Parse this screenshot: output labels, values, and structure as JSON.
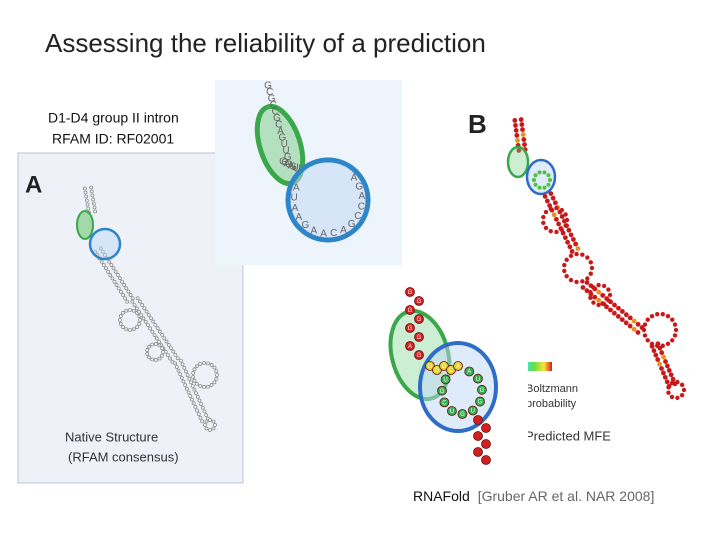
{
  "slide": {
    "title": "Assessing the reliability of a prediction",
    "panel_a": {
      "letter": "A",
      "caption_line1": "Native Structure",
      "caption_line2": "(RFAM consensus)"
    },
    "family": {
      "name": "D1-D4 group II intron",
      "rfam_id": "RFAM ID: RF02001"
    },
    "inset_nucleotides": [
      "G",
      "C",
      "G",
      "C",
      "C",
      "G",
      "C",
      "A",
      "G",
      "U",
      "U",
      "G",
      "G",
      "C",
      "A",
      "G",
      "A",
      "G",
      "U",
      "U",
      "A",
      "G",
      "A",
      "C",
      "C",
      "G",
      "A",
      "C",
      "A",
      "A",
      "G",
      "A",
      "A",
      "U",
      "A"
    ],
    "panel_b": {
      "letter": "B",
      "legend_line1": "Boltzmann",
      "legend_line2": "probability",
      "caption": "Predicted MFE"
    },
    "zoom_nucleotides": [
      "G",
      "G",
      "G",
      "G",
      "G",
      "G",
      "A",
      "G",
      "G",
      "G",
      "G",
      "C",
      "A",
      "A",
      "U",
      "G",
      "G",
      "U",
      "G",
      "U",
      "C",
      "G",
      "U"
    ],
    "citation": {
      "tool": "RNAFold",
      "reference": "[Gruber AR et al. NAR 2008]"
    }
  }
}
